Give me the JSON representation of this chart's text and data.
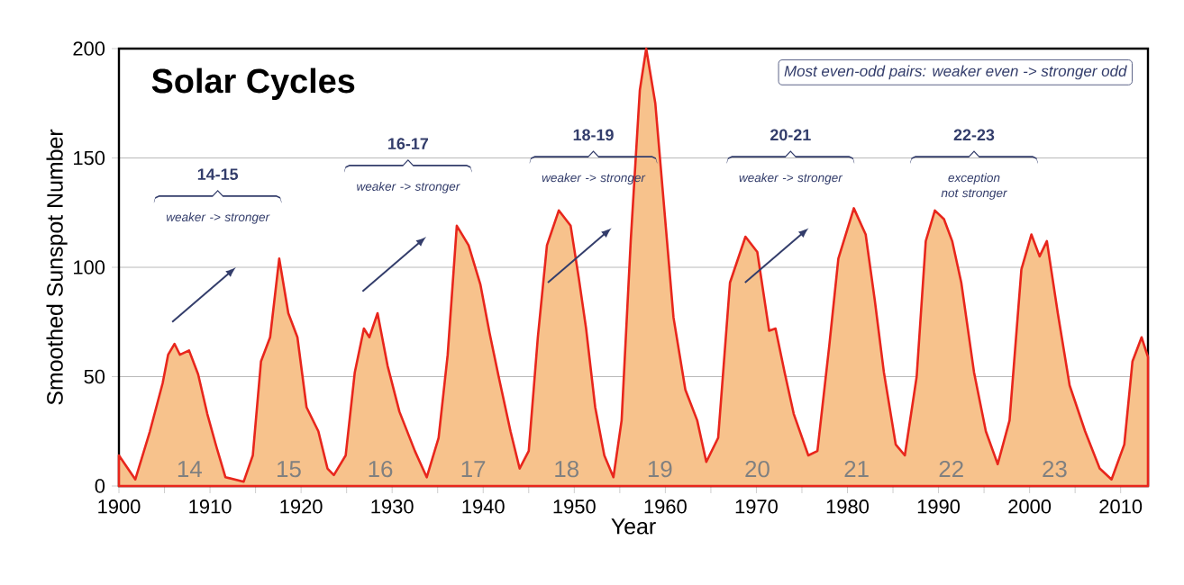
{
  "chart_data": {
    "type": "area",
    "title": "Solar Cycles",
    "xlabel": "Year",
    "ylabel": "Smoothed Sunspot Number",
    "color": "#e8261c",
    "grid": "y",
    "xlim": [
      1900,
      2013
    ],
    "ylim": [
      0,
      200
    ],
    "xticks": [
      1900,
      {
        "value": 1905,
        "label": null
      },
      1910,
      {
        "value": 1915,
        "label": null
      },
      1920,
      {
        "value": 1925,
        "label": null
      },
      1930,
      {
        "value": 1935,
        "label": null
      },
      1940,
      {
        "value": 1945,
        "label": null
      },
      1950,
      {
        "value": 1955,
        "label": null
      },
      1960,
      {
        "value": 1965,
        "label": null
      },
      1970,
      {
        "value": 1975,
        "label": null
      },
      1980,
      {
        "value": 1985,
        "label": null
      },
      1990,
      {
        "value": 1995,
        "label": null
      },
      2000,
      {
        "value": 2005,
        "label": null
      },
      2010
    ],
    "yticks": [
      0,
      50,
      100,
      150,
      200
    ],
    "x": [
      1900,
      1901.8,
      1903.4,
      1904.8,
      1905.4,
      1906.1,
      1906.7,
      1907.7,
      1908.7,
      1909.7,
      1910.7,
      1911.7,
      1913.7,
      1914.7,
      1915.6,
      1916.6,
      1917.6,
      1918.6,
      1919.6,
      1920.6,
      1921.9,
      1922.9,
      1923.6,
      1924.9,
      1925.9,
      1926.9,
      1927.5,
      1928.4,
      1929.5,
      1930.8,
      1932.5,
      1933.8,
      1935.1,
      1936.1,
      1937.1,
      1938.4,
      1939.7,
      1940.7,
      1941.7,
      1943,
      1944,
      1945,
      1946,
      1947,
      1948.3,
      1949.6,
      1950.5,
      1951.3,
      1952.3,
      1953.3,
      1954.3,
      1955.2,
      1956.2,
      1957.2,
      1957.9,
      1958.9,
      1959.9,
      1960.9,
      1962.2,
      1963.5,
      1964.5,
      1965.8,
      1967.1,
      1968.8,
      1970.1,
      1971.4,
      1972.1,
      1973.1,
      1974.1,
      1975.7,
      1976.7,
      1978,
      1979,
      1980.7,
      1982,
      1983,
      1984,
      1985.3,
      1986.3,
      1987.6,
      1988.6,
      1989.6,
      1990.6,
      1991.5,
      1992.5,
      1993.9,
      1995.2,
      1996.5,
      1997.8,
      1999.1,
      2000.2,
      2001.1,
      2001.9,
      2003.1,
      2004.4,
      2006.1,
      2007.7,
      2009,
      2010.4,
      2011.3,
      2012.3,
      2013
    ],
    "values": [
      14,
      3,
      25,
      47,
      60,
      65,
      60,
      62,
      51,
      33,
      18,
      4,
      2,
      14,
      57,
      68,
      104,
      79,
      68,
      36,
      25,
      8,
      5,
      14,
      52,
      72,
      68,
      79,
      55,
      34,
      16,
      4,
      22,
      60,
      119,
      110,
      92,
      70,
      50,
      25,
      8,
      16,
      68,
      110,
      126,
      119,
      95,
      72,
      36,
      14,
      4,
      30,
      112,
      181,
      200,
      175,
      126,
      77,
      44,
      30,
      11,
      22,
      93,
      114,
      107,
      71,
      72,
      52,
      33,
      14,
      16,
      64,
      104,
      127,
      115,
      85,
      52,
      19,
      14,
      50,
      112,
      126,
      122,
      112,
      93,
      52,
      25,
      10,
      30,
      99,
      115,
      105,
      112,
      79,
      46,
      25,
      8,
      3,
      19,
      57,
      68,
      59
    ],
    "annotations": [
      "Most even-odd pairs: weaker even -> stronger odd",
      "14",
      "15",
      "16",
      "17",
      "18",
      "19",
      "20",
      "21",
      "22",
      "23",
      "14-15",
      "weaker -> stronger",
      "16-17",
      "weaker -> stronger",
      "18-19",
      "weaker -> stronger",
      "20-21",
      "weaker -> stronger",
      "22-23",
      "exception not stronger"
    ]
  }
}
